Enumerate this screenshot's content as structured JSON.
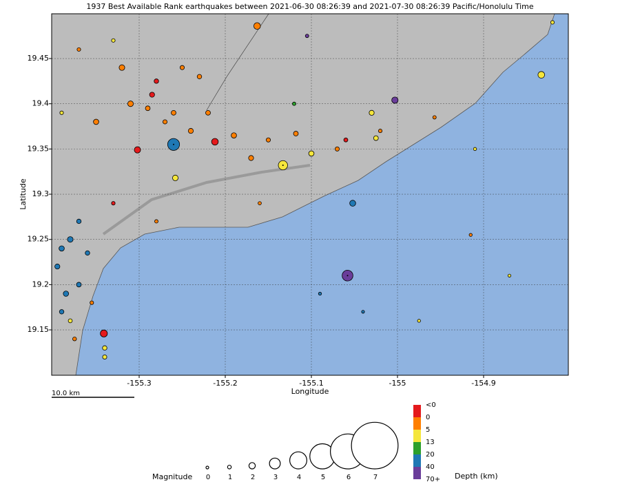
{
  "chart_data": {
    "type": "scatter",
    "title": "1937 Best Available Rank earthquakes between 2021-06-30 08:26:39 and 2021-07-30 08:26:39 Pacific/Honolulu Time",
    "xlabel": "Longitude",
    "ylabel": "Latitude",
    "xlim": [
      -155.4016,
      -154.8016
    ],
    "ylim": [
      19.0998,
      19.4995
    ],
    "xticks": [
      -155.3,
      -155.2,
      -155.1,
      -155,
      -154.9
    ],
    "yticks": [
      19.15,
      19.2,
      19.25,
      19.3,
      19.35,
      19.4,
      19.45
    ],
    "grid": true,
    "scale_bar": "10.0 km",
    "points": {
      "lon": [
        -155.26,
        -155.058,
        -155.003,
        -155.341,
        -155.163,
        -154.833,
        -155.133,
        -155.052,
        -155.302,
        -155.212,
        -155.258,
        -155.285,
        -155.26,
        -155.24,
        -155.32,
        -155.31,
        -155.35,
        -155.19,
        -155.17,
        -155.1,
        -155.03,
        -155.025,
        -155.07,
        -155.06,
        -155.23,
        -155.25,
        -155.28,
        -155.27,
        -155.29,
        -155.22,
        -155.15,
        -155.118,
        -155.12,
        -155.37,
        -155.33,
        -155.39,
        -155.39,
        -155.38,
        -155.395,
        -155.37,
        -155.385,
        -155.39,
        -155.36,
        -155.38,
        -155.375,
        -155.34,
        -155.34,
        -155.37,
        -155.355,
        -155.28,
        -155.16,
        -154.957,
        -154.91,
        -154.82,
        -154.975,
        -155.09,
        -155.04,
        -155.33,
        -155.02,
        -155.105,
        -154.915,
        -154.87
      ],
      "lat": [
        19.355,
        19.21,
        19.404,
        19.146,
        19.486,
        19.432,
        19.332,
        19.29,
        19.349,
        19.358,
        19.318,
        19.41,
        19.39,
        19.37,
        19.44,
        19.4,
        19.38,
        19.365,
        19.34,
        19.345,
        19.39,
        19.362,
        19.35,
        19.36,
        19.43,
        19.44,
        19.425,
        19.38,
        19.395,
        19.39,
        19.36,
        19.367,
        19.4,
        19.46,
        19.47,
        19.39,
        19.24,
        19.25,
        19.22,
        19.2,
        19.19,
        19.17,
        19.235,
        19.16,
        19.14,
        19.13,
        19.12,
        19.27,
        19.18,
        19.27,
        19.29,
        19.385,
        19.35,
        19.49,
        19.16,
        19.19,
        19.17,
        19.29,
        19.37,
        19.475,
        19.255,
        19.21
      ],
      "mag": [
        3.2,
        3.0,
        2.0,
        2.2,
        2.1,
        2.1,
        2.7,
        1.9,
        2.0,
        2.1,
        1.8,
        1.6,
        1.5,
        1.6,
        1.8,
        1.8,
        1.7,
        1.7,
        1.6,
        1.7,
        1.6,
        1.5,
        1.3,
        1.2,
        1.4,
        1.3,
        1.4,
        1.3,
        1.5,
        1.5,
        1.3,
        1.5,
        0.9,
        1.0,
        1.0,
        1.0,
        1.7,
        1.8,
        1.6,
        1.5,
        1.7,
        1.4,
        1.4,
        1.2,
        1.1,
        1.4,
        1.3,
        1.4,
        1.0,
        0.9,
        0.8,
        0.9,
        0.7,
        1.0,
        0.6,
        0.6,
        0.5,
        1.0,
        1.0,
        0.9,
        0.6,
        0.5
      ],
      "depth_km": [
        30,
        50,
        50,
        -0.5,
        3,
        8,
        8,
        25,
        -0.5,
        -0.5,
        8,
        -0.5,
        2,
        2,
        2,
        2,
        2,
        2,
        2,
        8,
        8,
        8,
        2,
        -0.5,
        2,
        2,
        -0.5,
        2,
        2,
        2,
        2,
        2,
        16,
        2,
        8,
        8,
        25,
        25,
        25,
        25,
        25,
        25,
        25,
        8,
        2,
        8,
        8,
        25,
        2,
        2,
        2,
        2,
        8,
        8,
        8,
        25,
        25,
        -0.5,
        2,
        50,
        2,
        8
      ]
    },
    "magnitude_legend": {
      "label": "Magnitude",
      "values": [
        0,
        1,
        2,
        3,
        4,
        5,
        6,
        7
      ]
    },
    "depth_legend": {
      "label": "Depth (km)",
      "ticks": [
        "<0",
        0,
        5,
        13,
        20,
        40,
        "70+"
      ],
      "colors": [
        "#e41a1c",
        "#ff7f00",
        "#f5e63c",
        "#2ca02c",
        "#1f78b4",
        "#6a3d9a"
      ]
    }
  }
}
